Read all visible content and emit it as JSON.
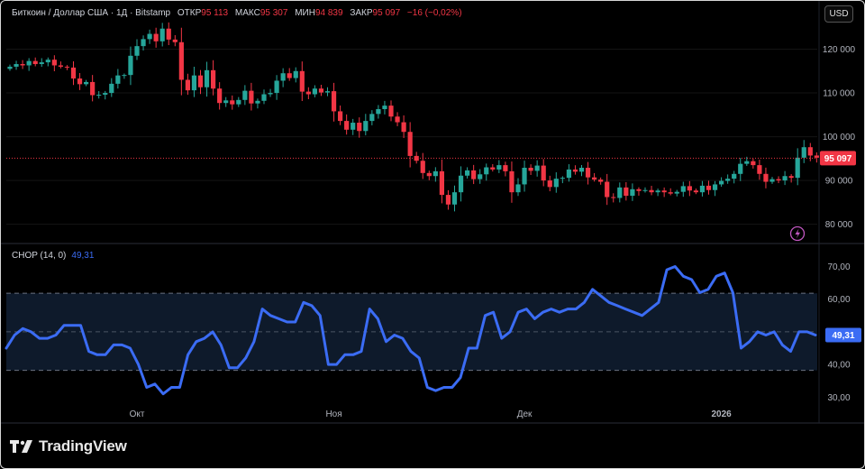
{
  "legend": {
    "symbol": "Биткоин / Доллар США · 1Д · Bitstamp",
    "open_label": "ОТКР",
    "open_value": "95 113",
    "high_label": "МАКС",
    "high_value": "95 307",
    "low_label": "МИН",
    "low_value": "94 839",
    "close_label": "ЗАКР",
    "close_value": "95 097",
    "change": "−16 (−0,02%)"
  },
  "currency_button": "USD",
  "logo_text": "TradingView",
  "colors": {
    "up": "#26a69a",
    "down": "#f23645",
    "chop": "#3b6cf4",
    "band": "#0e1a2b"
  },
  "chart_data": [
    {
      "type": "candlestick",
      "price_axis_labels": [
        "120 000",
        "110 000",
        "100 000",
        "90 000",
        "80 000"
      ],
      "price_ticks": [
        120000,
        110000,
        100000,
        90000,
        80000
      ],
      "ylim": [
        76000,
        126500
      ],
      "last_price_label": "95 097",
      "last_price": 95097,
      "x_axis_labels": [
        "Окт",
        "Ноя",
        "Дек",
        "2026"
      ],
      "x_axis_label_dates": [
        "2025-10-01",
        "2025-11-01",
        "2025-12-01",
        "2026-01-01"
      ],
      "start_date": "2025-09-11",
      "closes": [
        116000,
        116600,
        116300,
        117300,
        116600,
        117000,
        117600,
        116300,
        116000,
        115800,
        113300,
        112000,
        112500,
        109500,
        109600,
        110000,
        112100,
        114000,
        114100,
        118500,
        120700,
        122300,
        123500,
        121800,
        124700,
        122200,
        121600,
        113000,
        110600,
        114000,
        111300,
        115200,
        111000,
        107700,
        108300,
        107400,
        108400,
        110500,
        107600,
        108200,
        109700,
        110000,
        112800,
        114500,
        113400,
        115000,
        110300,
        109700,
        111000,
        110100,
        110400,
        105800,
        103600,
        101600,
        103200,
        101300,
        103600,
        105200,
        106300,
        107100,
        104600,
        103300,
        101100,
        95600,
        94500,
        91700,
        91000,
        92100,
        86700,
        84500,
        87300,
        91100,
        92300,
        90300,
        91400,
        93000,
        92500,
        93500,
        92100,
        87300,
        89100,
        92900,
        92200,
        93400,
        90000,
        88500,
        90400,
        90600,
        92500,
        92000,
        92900,
        90700,
        90200,
        89700,
        86200,
        86000,
        88400,
        86500,
        88000,
        87600,
        87800,
        87300,
        87700,
        87300,
        87000,
        87400,
        88700,
        87700,
        87300,
        88800,
        87800,
        89100,
        89900,
        90400,
        91500,
        93800,
        94400,
        93500,
        91500,
        89700,
        90300,
        90000,
        91000,
        90600,
        95200,
        97600,
        95700,
        95200,
        95100
      ],
      "chop": {
        "name": "CHOP (14, 0)",
        "last_value_label": "49,31",
        "axis_labels": [
          "70,00",
          "60,00",
          "50,00",
          "40,00",
          "30,00"
        ],
        "axis_ticks": [
          70,
          60,
          50,
          40,
          30
        ],
        "ylim": [
          26.5,
          74
        ],
        "band": [
          38.2,
          61.8
        ],
        "mid": 50,
        "values": [
          45,
          49,
          51,
          50,
          48,
          48,
          49,
          52,
          52,
          52,
          44,
          43,
          43,
          46,
          46,
          45,
          40,
          33,
          34,
          31,
          33,
          33,
          43,
          47,
          48,
          50,
          46,
          39,
          39,
          42,
          47,
          57,
          55,
          54,
          53,
          53,
          59,
          58,
          55,
          40,
          40,
          43,
          43,
          44,
          57,
          54,
          47,
          49,
          48,
          44,
          42,
          33,
          32,
          33,
          33,
          36,
          45,
          45,
          55,
          56,
          48,
          50,
          56,
          57,
          54,
          56,
          57,
          56,
          57,
          57,
          59,
          63,
          61,
          59,
          58,
          57,
          56,
          55,
          57,
          59,
          69,
          70,
          67,
          66,
          62,
          63,
          67,
          68,
          62,
          45,
          47,
          50,
          49,
          50,
          46,
          44,
          50,
          50,
          49
        ]
      }
    }
  ]
}
